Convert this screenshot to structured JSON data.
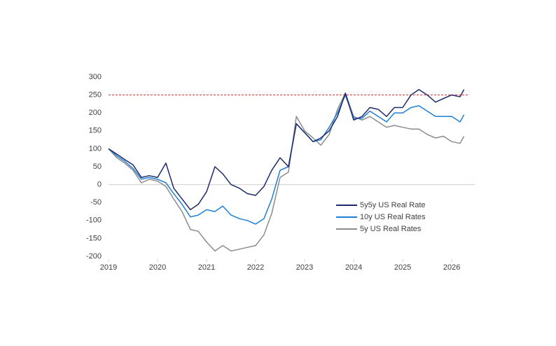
{
  "chart_data": {
    "type": "line",
    "x": [
      2019,
      2019.17,
      2019.33,
      2019.5,
      2019.67,
      2019.83,
      2020,
      2020.17,
      2020.33,
      2020.5,
      2020.67,
      2020.83,
      2021,
      2021.17,
      2021.33,
      2021.5,
      2021.67,
      2021.83,
      2022,
      2022.17,
      2022.33,
      2022.5,
      2022.67,
      2022.83,
      2023,
      2023.17,
      2023.33,
      2023.5,
      2023.67,
      2023.83,
      2024,
      2024.17,
      2024.33,
      2024.5,
      2024.67,
      2024.83,
      2025,
      2025.17,
      2025.33,
      2025.5,
      2025.67,
      2025.83,
      2026,
      2026.17,
      2026.25
    ],
    "series": [
      {
        "name": "5y5y US Real Rate",
        "color": "#1f2a6b",
        "values": [
          100,
          85,
          70,
          55,
          20,
          25,
          20,
          60,
          -10,
          -40,
          -70,
          -55,
          -20,
          50,
          30,
          0,
          -10,
          -25,
          -30,
          -5,
          40,
          75,
          50,
          170,
          145,
          120,
          130,
          150,
          190,
          255,
          180,
          190,
          215,
          210,
          190,
          215,
          215,
          250,
          265,
          250,
          230,
          240,
          250,
          245,
          265
        ]
      },
      {
        "name": "10y US Real Rates",
        "color": "#1f7fd6",
        "values": [
          100,
          80,
          65,
          45,
          15,
          20,
          15,
          5,
          -25,
          -55,
          -90,
          -85,
          -70,
          -75,
          -60,
          -85,
          -95,
          -100,
          -110,
          -95,
          -40,
          40,
          50,
          170,
          145,
          120,
          125,
          160,
          200,
          250,
          185,
          185,
          205,
          190,
          175,
          200,
          200,
          215,
          220,
          205,
          190,
          190,
          190,
          175,
          195
        ]
      },
      {
        "name": "5y US Real Rates",
        "color": "#8c8c8c",
        "values": [
          100,
          75,
          60,
          40,
          5,
          15,
          10,
          -5,
          -40,
          -75,
          -125,
          -130,
          -160,
          -185,
          -170,
          -185,
          -180,
          -175,
          -170,
          -140,
          -80,
          20,
          35,
          190,
          150,
          130,
          110,
          140,
          210,
          255,
          190,
          180,
          190,
          175,
          160,
          165,
          160,
          155,
          155,
          140,
          130,
          135,
          120,
          115,
          135
        ]
      }
    ],
    "reference_line": {
      "value": 250,
      "color": "#d62728"
    },
    "xlim": [
      2019,
      2026.47
    ],
    "xticks": [
      2019,
      2020,
      2021,
      2022,
      2023,
      2024,
      2025,
      2026
    ],
    "ylim": [
      -200,
      300
    ],
    "yticks": [
      -200,
      -150,
      -100,
      -50,
      0,
      50,
      100,
      150,
      200,
      250,
      300
    ],
    "legend": "right"
  }
}
